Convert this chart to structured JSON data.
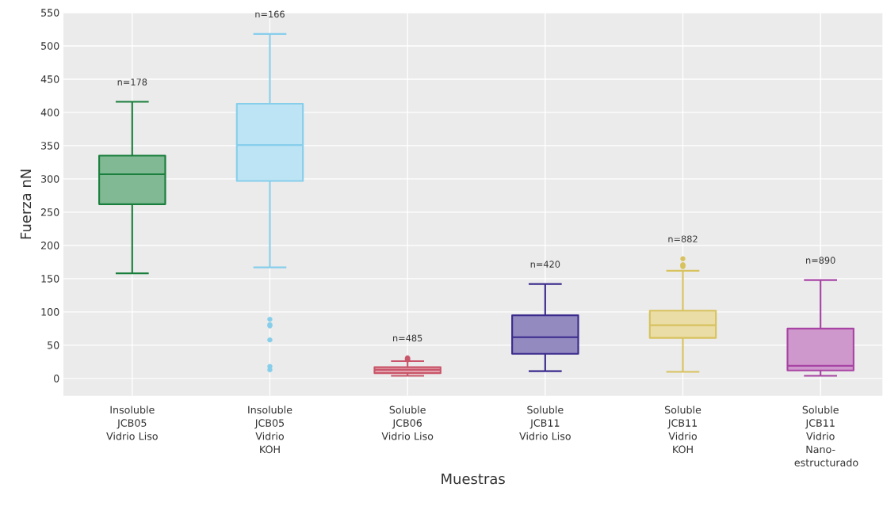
{
  "chart_data": {
    "type": "box",
    "xlabel": "Muestras",
    "ylabel": "Fuerza nN",
    "categories": [
      "Insoluble JCB05 Vidrio Liso",
      "Insoluble JCB05 Vidrio KOH",
      "Soluble JCB06 Vidrio Liso",
      "Soluble JCB11 Vidrio Liso",
      "Soluble JCB11 Vidrio KOH",
      "Soluble JCB11 Vidrio Nano-estructurado"
    ],
    "ylim": [
      -26,
      550
    ],
    "yticks": [
      0,
      50,
      100,
      150,
      200,
      250,
      300,
      350,
      400,
      450,
      500,
      550
    ],
    "grid": true,
    "series": [
      {
        "colors": [
          "#1a7f3c",
          "#87ceeb",
          "#c9566a",
          "#3a2a8c",
          "#d8c25e",
          "#a844a4"
        ],
        "boxes": [
          {
            "low": 158,
            "q1": 262,
            "median": 307,
            "q3": 335,
            "high": 416
          },
          {
            "low": 167,
            "q1": 297,
            "median": 351,
            "q3": 413,
            "high": 518,
            "outliers": [
              89,
              81,
              79,
              58,
              18,
              13
            ]
          },
          {
            "low": 4,
            "q1": 8,
            "median": 13,
            "q3": 17,
            "high": 26,
            "outliers": [
              28,
              30,
              31,
              29
            ]
          },
          {
            "low": 11,
            "q1": 37,
            "median": 62,
            "q3": 95,
            "high": 142
          },
          {
            "low": 10,
            "q1": 61,
            "median": 80,
            "q3": 102,
            "high": 162,
            "outliers": [
              168,
              170,
              171,
              180
            ]
          },
          {
            "low": 4,
            "q1": 12,
            "median": 19,
            "q3": 75,
            "high": 148
          }
        ]
      }
    ],
    "annotations": [
      "n=178",
      "n=166",
      "n=485",
      "n=420",
      "n=882",
      "n=890"
    ]
  }
}
